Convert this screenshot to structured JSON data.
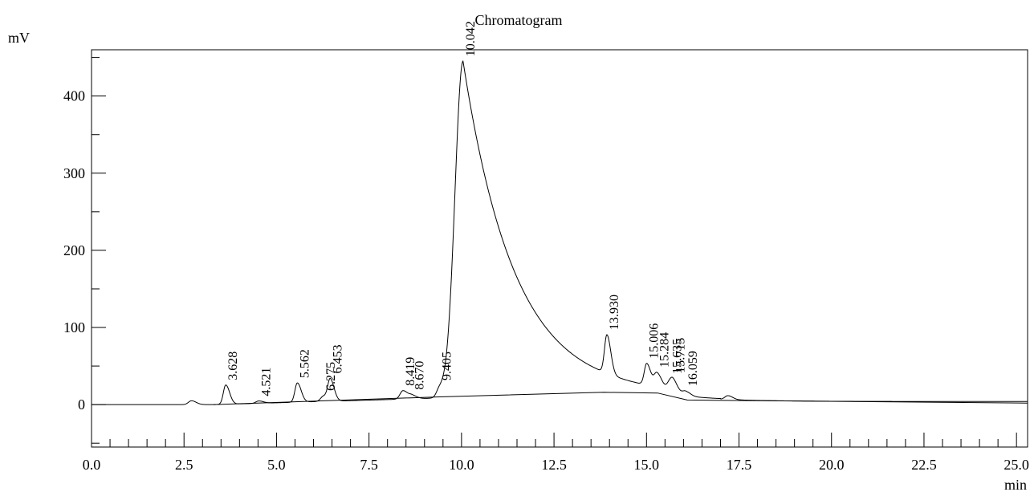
{
  "chart_data": {
    "type": "line",
    "title": "Chromatogram",
    "ylabel": "mV",
    "xlabel": "min",
    "xlim": [
      0,
      25.3
    ],
    "ylim": [
      -55,
      460
    ],
    "x_ticks": [
      "0.0",
      "2.5",
      "5.0",
      "7.5",
      "10.0",
      "12.5",
      "15.0",
      "17.5",
      "20.0",
      "22.5",
      "25.0"
    ],
    "y_ticks": [
      "0",
      "100",
      "200",
      "300",
      "400"
    ],
    "grid": false,
    "peaks": [
      {
        "label": "3.628",
        "rt": 3.628,
        "height": 25
      },
      {
        "label": "4.521",
        "rt": 4.521,
        "height": 3
      },
      {
        "label": "5.562",
        "rt": 5.562,
        "height": 25
      },
      {
        "label": "6.275",
        "rt": 6.275,
        "height": 7
      },
      {
        "label": "6.453",
        "rt": 6.453,
        "height": 27
      },
      {
        "label": "8.419",
        "rt": 8.419,
        "height": 11
      },
      {
        "label": "8.670",
        "rt": 8.67,
        "height": 4
      },
      {
        "label": "9.405",
        "rt": 9.405,
        "height": 10
      },
      {
        "label": "10.042",
        "rt": 10.042,
        "height": 436
      },
      {
        "label": "13.930",
        "rt": 13.93,
        "height": 50
      },
      {
        "label": "15.006",
        "rt": 15.006,
        "height": 28
      },
      {
        "label": "15.284",
        "rt": 15.284,
        "height": 18
      },
      {
        "label": "15.635",
        "rt": 15.635,
        "height": 9
      },
      {
        "label": "15.715",
        "rt": 15.715,
        "height": 11
      },
      {
        "label": "16.059",
        "rt": 16.059,
        "height": 6
      }
    ],
    "unlabeled_peaks": [
      {
        "rt": 2.7,
        "height": 5
      },
      {
        "rt": 17.2,
        "height": 5
      }
    ],
    "baseline": [
      [
        3.3,
        0
      ],
      [
        9.4,
        10
      ],
      [
        13.85,
        16
      ],
      [
        15.3,
        15
      ],
      [
        16.1,
        6
      ],
      [
        25.3,
        2
      ]
    ]
  }
}
